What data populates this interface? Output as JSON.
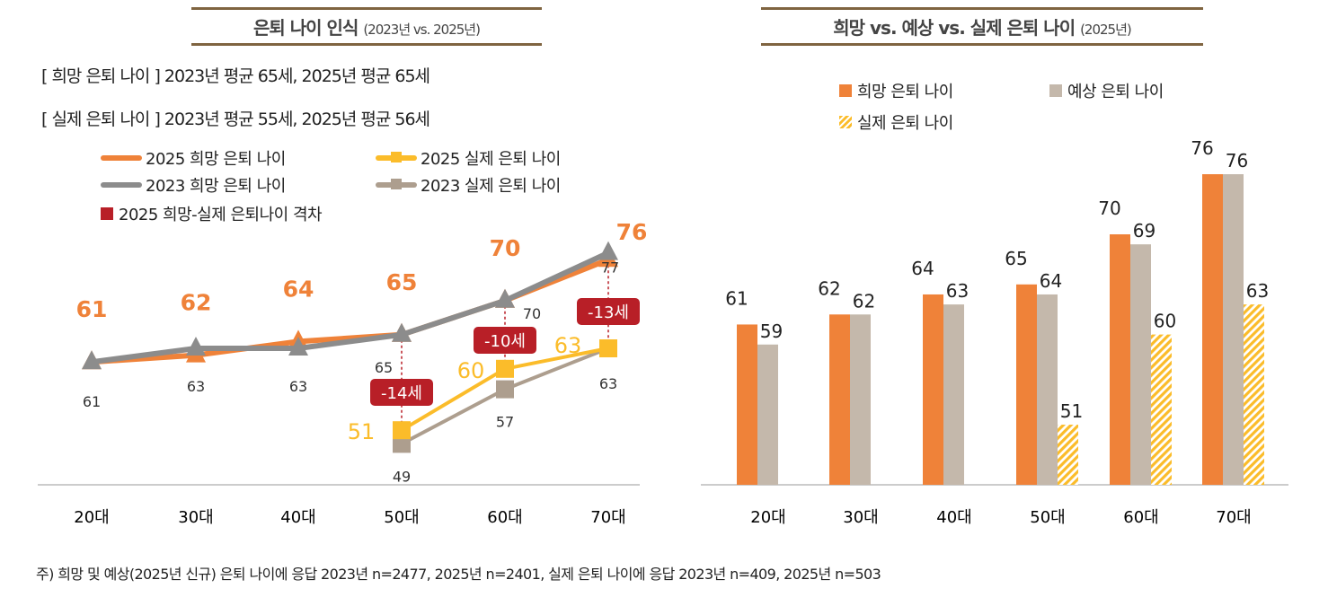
{
  "left": {
    "title": "은퇴 나이 인식",
    "title_sub": "(2023년 vs. 2025년)",
    "summary": [
      "[ 희망 은퇴 나이 ] 2023년 평균 65세, 2025년 평균 65세",
      "[ 실제 은퇴 나이 ] 2023년 평균 55세, 2025년 평균 56세"
    ],
    "legend": [
      "2025 희망 은퇴 나이",
      "2025 실제 은퇴 나이",
      "2023 희망 은퇴 나이",
      "2023 실제 은퇴 나이",
      "2025 희망-실제 은퇴나이 격차"
    ]
  },
  "right": {
    "title": "희망 vs. 예상 vs. 실제 은퇴 나이",
    "title_sub": "(2025년)",
    "legend": [
      "희망 은퇴 나이",
      "예상 은퇴 나이",
      "실제 은퇴 나이"
    ]
  },
  "note": "주) 희망 및 예상(2025년 신규) 은퇴 나이에 응답 2023년 n=2477, 2025년 n=2401, 실제 은퇴 나이에 응답 2023년 n=409, 2025년 n=503",
  "colors": {
    "hope2025": "#ef8239",
    "hope2023": "#8c8c8c",
    "actual2025": "#fbbc2a",
    "actual2023": "#ad9e8e",
    "gap": "#b81f27",
    "expect": "#c4b8ab",
    "rule": "#7f6440"
  },
  "chart_data": [
    {
      "type": "line",
      "title": "은퇴 나이 인식 (2023년 vs. 2025년)",
      "categories": [
        "20대",
        "30대",
        "40대",
        "50대",
        "60대",
        "70대"
      ],
      "ylim": [
        43,
        80
      ],
      "grid": false,
      "legend_position": "top",
      "series": [
        {
          "name": "2025 희망 은퇴 나이",
          "values": [
            61,
            62,
            64,
            65,
            70,
            76
          ]
        },
        {
          "name": "2023 희망 은퇴 나이",
          "values": [
            61,
            63,
            63,
            65,
            70,
            77
          ]
        },
        {
          "name": "2025 실제 은퇴 나이",
          "values": [
            null,
            null,
            null,
            51,
            60,
            63
          ]
        },
        {
          "name": "2023 실제 은퇴 나이",
          "values": [
            null,
            null,
            null,
            49,
            57,
            63
          ]
        }
      ],
      "gap_labels": [
        {
          "category": "50대",
          "label": "-14세"
        },
        {
          "category": "60대",
          "label": "-10세"
        },
        {
          "category": "70대",
          "label": "-13세"
        }
      ]
    },
    {
      "type": "bar",
      "title": "희망 vs. 예상 vs. 실제 은퇴 나이 (2025년)",
      "categories": [
        "20대",
        "30대",
        "40대",
        "50대",
        "60대",
        "70대"
      ],
      "ylim": [
        45,
        80
      ],
      "grid": false,
      "legend_position": "top",
      "series": [
        {
          "name": "희망 은퇴 나이",
          "values": [
            61,
            62,
            64,
            65,
            70,
            76
          ]
        },
        {
          "name": "예상 은퇴 나이",
          "values": [
            59,
            62,
            63,
            64,
            69,
            76
          ]
        },
        {
          "name": "실제 은퇴 나이",
          "values": [
            null,
            null,
            null,
            51,
            60,
            63
          ]
        }
      ]
    }
  ]
}
